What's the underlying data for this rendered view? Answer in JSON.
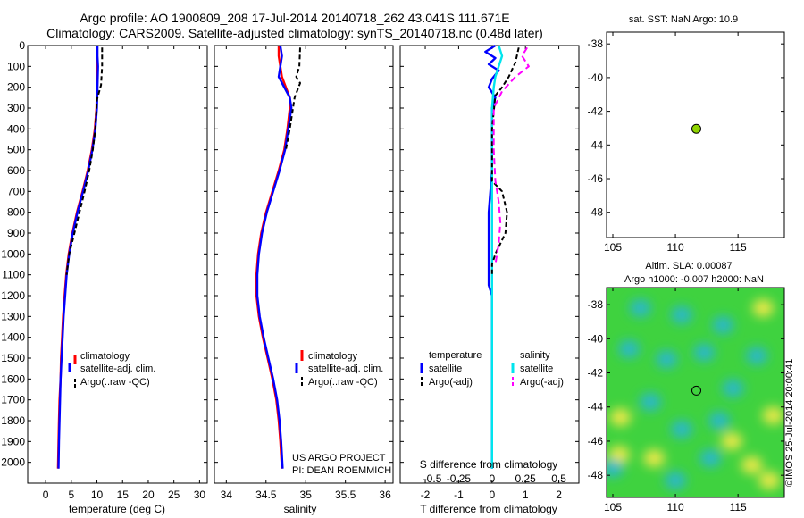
{
  "header": {
    "title_line1": "Argo profile: AO 1900809_208 17-Jul-2014 20140718_262 43.041S 111.671E",
    "title_line2": "Climatology: CARS2009. Satellite-adjusted climatology: synTS_20140718.nc (0.48d later)"
  },
  "credits": {
    "line1": "US ARGO PROJECT",
    "line2": "PI: DEAN ROEMMICH",
    "stamp": "©IMOS 25-Jul-2014 20:00:41"
  },
  "colors": {
    "climatology": "#ff0000",
    "satellite": "#0000ff",
    "argo": "#000000",
    "sal_satellite": "#00e5ee",
    "sal_argo": "#ff00ff",
    "marker_fill": "#8fd400"
  },
  "chart_data": [
    {
      "type": "line",
      "id": "temperature",
      "xlabel": "temperature (deg C)",
      "ylabel": "",
      "xlim": [
        -3.5,
        31.5
      ],
      "ylim": [
        2100,
        0
      ],
      "xticks": [
        0,
        5,
        10,
        15,
        20,
        25,
        30
      ],
      "yticks": [
        0,
        100,
        200,
        300,
        400,
        500,
        600,
        700,
        800,
        900,
        1000,
        1100,
        1200,
        1300,
        1400,
        1500,
        1600,
        1700,
        1800,
        1900,
        2000
      ],
      "legend": [
        "climatology",
        "satellite-adj. clim.",
        "Argo(..raw -QC)"
      ],
      "legend_position": "bottom-center",
      "series": [
        {
          "name": "climatology",
          "color": "#ff0000",
          "dash": "",
          "x": [
            10.0,
            10.0,
            10.1,
            10.0,
            9.9,
            9.6,
            9.0,
            8.2,
            7.2,
            6.1,
            5.2,
            4.5,
            4.0,
            3.7,
            3.4,
            3.2,
            3.0,
            2.9,
            2.7,
            2.6,
            2.5,
            2.4
          ],
          "y": [
            0,
            50,
            100,
            200,
            300,
            400,
            500,
            600,
            700,
            800,
            900,
            1000,
            1100,
            1200,
            1300,
            1400,
            1500,
            1600,
            1700,
            1800,
            1900,
            2030
          ]
        },
        {
          "name": "satellite-adj. clim.",
          "color": "#0000ff",
          "dash": "",
          "x": [
            10.1,
            10.1,
            10.2,
            10.1,
            10.0,
            9.7,
            9.1,
            8.3,
            7.3,
            6.2,
            5.3,
            4.6,
            4.1,
            3.8,
            3.5,
            3.3,
            3.1,
            2.9,
            2.8,
            2.7,
            2.6,
            2.5
          ],
          "y": [
            0,
            50,
            100,
            200,
            300,
            400,
            500,
            600,
            700,
            800,
            900,
            1000,
            1100,
            1200,
            1300,
            1400,
            1500,
            1600,
            1700,
            1800,
            1900,
            2030
          ]
        },
        {
          "name": "Argo(..raw -QC)",
          "color": "#000000",
          "dash": "5,3",
          "x": [
            11.0,
            11.0,
            11.0,
            10.8,
            10.0,
            9.7,
            9.2,
            8.5,
            7.6,
            6.6,
            5.6,
            4.6,
            4.1
          ],
          "y": [
            10,
            50,
            100,
            190,
            260,
            400,
            500,
            600,
            700,
            800,
            900,
            1000,
            1100
          ]
        }
      ]
    },
    {
      "type": "line",
      "id": "salinity",
      "xlabel": "salinity",
      "ylabel": "",
      "xlim": [
        33.85,
        36.1
      ],
      "ylim": [
        2100,
        0
      ],
      "xticks": [
        34,
        34.5,
        35,
        35.5,
        36
      ],
      "xticklabels": [
        "34",
        "34.5",
        "35",
        "35.5",
        "36"
      ],
      "legend": [
        "climatology",
        "satellite-adj. clim.",
        "Argo(..raw -QC)"
      ],
      "legend_position": "bottom-right",
      "series": [
        {
          "name": "climatology",
          "color": "#ff0000",
          "dash": "",
          "x": [
            34.66,
            34.66,
            34.7,
            34.8,
            34.8,
            34.77,
            34.73,
            34.66,
            34.58,
            34.5,
            34.44,
            34.4,
            34.38,
            34.38,
            34.41,
            34.46,
            34.52,
            34.58,
            34.63,
            34.66,
            34.68,
            34.7
          ],
          "y": [
            0,
            50,
            150,
            250,
            300,
            400,
            500,
            600,
            700,
            800,
            900,
            1000,
            1100,
            1200,
            1300,
            1400,
            1500,
            1600,
            1700,
            1800,
            1900,
            2030
          ]
        },
        {
          "name": "satellite-adj. clim.",
          "color": "#0000ff",
          "dash": "",
          "x": [
            34.68,
            34.7,
            34.66,
            34.8,
            34.82,
            34.78,
            34.74,
            34.67,
            34.59,
            34.51,
            34.45,
            34.41,
            34.39,
            34.39,
            34.42,
            34.47,
            34.53,
            34.59,
            34.64,
            34.67,
            34.69,
            34.71
          ],
          "y": [
            0,
            50,
            150,
            250,
            300,
            400,
            500,
            600,
            700,
            800,
            900,
            1000,
            1100,
            1200,
            1300,
            1400,
            1500,
            1600,
            1700,
            1800,
            1900,
            2030
          ]
        },
        {
          "name": "Argo(..raw -QC)",
          "color": "#000000",
          "dash": "5,3",
          "x": [
            34.93,
            34.92,
            34.88,
            34.93,
            34.86,
            34.8,
            34.75
          ],
          "y": [
            10,
            100,
            150,
            180,
            250,
            400,
            500
          ]
        }
      ]
    },
    {
      "type": "line",
      "id": "differences",
      "xlabel": "T difference from climatology",
      "xlabel2": "S difference from climatology",
      "xlim": [
        -2.75,
        2.6
      ],
      "ylim": [
        2100,
        0
      ],
      "xticks": [
        -2,
        -1,
        0,
        1,
        2
      ],
      "sxticklabels": [
        "-0.5",
        "-0.25",
        "0",
        "0.25",
        "0.5"
      ],
      "legend_titles": [
        "temperature",
        "salinity"
      ],
      "legend": [
        "satellite",
        "Argo(-adj)",
        "satellite",
        "Argo(-adj)"
      ],
      "legend_position": "bottom-center",
      "series": [
        {
          "name": "satellite",
          "group": "temperature",
          "color": "#0000ff",
          "dash": "",
          "x": [
            0.1,
            -0.2,
            0.1,
            -0.1,
            0.2,
            0.0,
            -0.1,
            0.1,
            0.0,
            0.0,
            0.0,
            -0.1,
            -0.1,
            -0.1,
            -0.1,
            0.0,
            0.0,
            0.0,
            0.0,
            0.0,
            0.0,
            0.0,
            0.0,
            0.0,
            0.0
          ],
          "y": [
            0,
            30,
            60,
            90,
            120,
            160,
            200,
            250,
            300,
            400,
            600,
            800,
            1000,
            1100,
            1150,
            1200,
            1300,
            1400,
            1500,
            1600,
            1700,
            1800,
            1900,
            2000,
            2030
          ]
        },
        {
          "name": "satellite",
          "group": "salinity",
          "color": "#00e5ee",
          "dash": "",
          "x": [
            0.2,
            0.3,
            0.2,
            0.1,
            0.05,
            0.0,
            0.0,
            0.0,
            0.0,
            0.0,
            0.0,
            0.0,
            0.0
          ],
          "y": [
            0,
            50,
            100,
            150,
            200,
            300,
            500,
            800,
            1100,
            1400,
            1700,
            1900,
            2030
          ]
        },
        {
          "name": "Argo(-adj)",
          "group": "temperature",
          "color": "#000000",
          "dash": "5,3",
          "x": [
            0.8,
            0.7,
            0.5,
            0.3,
            0.1,
            0.0,
            0.0,
            0.0,
            0.3,
            0.45,
            0.4,
            0.1,
            0.0,
            0.0
          ],
          "y": [
            10,
            80,
            150,
            200,
            240,
            400,
            600,
            650,
            700,
            800,
            900,
            1000,
            1050,
            1100
          ]
        },
        {
          "name": "Argo(-adj)",
          "group": "salinity",
          "color": "#ff00ff",
          "dash": "7,4",
          "x": [
            1.05,
            0.9,
            1.1,
            0.7,
            0.3,
            0.05,
            0.05,
            0.1,
            0.2,
            0.25,
            0.2,
            0.1
          ],
          "y": [
            10,
            50,
            100,
            150,
            220,
            300,
            500,
            650,
            750,
            850,
            950,
            1050
          ]
        }
      ]
    },
    {
      "type": "scatter",
      "id": "position-map",
      "title": "sat. SST: NaN Argo: 10.9",
      "xlim": [
        104.5,
        118.7
      ],
      "ylim": [
        -49.5,
        -37.3
      ],
      "xticks": [
        105,
        110,
        115
      ],
      "yticks": [
        -38,
        -40,
        -42,
        -44,
        -46,
        -48
      ],
      "points": [
        {
          "x": 111.671,
          "y": -43.041
        }
      ]
    },
    {
      "type": "heatmap",
      "id": "altimetry-map",
      "title_line1": "Altim. SLA: 0.00087",
      "title_line2": "Argo h1000: -0.007 h2000: NaN",
      "xlim": [
        104.5,
        118.7
      ],
      "ylim": [
        -49.3,
        -37.0
      ],
      "xticks": [
        105,
        110,
        115
      ],
      "yticks": [
        -38,
        -40,
        -42,
        -44,
        -46,
        -48
      ],
      "points": [
        {
          "x": 111.671,
          "y": -43.041
        }
      ],
      "anomaly_blobs": [
        {
          "x": 107.2,
          "y": -38.2,
          "level": "cyan"
        },
        {
          "x": 110.5,
          "y": -38.6,
          "level": "cyan"
        },
        {
          "x": 117.0,
          "y": -38.2,
          "level": "yellow"
        },
        {
          "x": 113.8,
          "y": -39.2,
          "level": "cyan"
        },
        {
          "x": 106.3,
          "y": -40.6,
          "level": "cyan"
        },
        {
          "x": 109.3,
          "y": -41.2,
          "level": "cyan"
        },
        {
          "x": 112.3,
          "y": -40.8,
          "level": "cyan"
        },
        {
          "x": 116.5,
          "y": -41.0,
          "level": "cyan"
        },
        {
          "x": 114.6,
          "y": -42.9,
          "level": "cyan"
        },
        {
          "x": 108.0,
          "y": -43.7,
          "level": "cyan"
        },
        {
          "x": 105.6,
          "y": -44.6,
          "level": "yellow"
        },
        {
          "x": 117.8,
          "y": -44.5,
          "level": "yellow"
        },
        {
          "x": 110.5,
          "y": -45.3,
          "level": "cyan"
        },
        {
          "x": 113.5,
          "y": -44.8,
          "level": "cyan"
        },
        {
          "x": 105.5,
          "y": -46.8,
          "level": "yellow"
        },
        {
          "x": 108.3,
          "y": -47.0,
          "level": "yellow"
        },
        {
          "x": 112.8,
          "y": -47.0,
          "level": "cyan"
        },
        {
          "x": 116.1,
          "y": -47.4,
          "level": "yellow"
        },
        {
          "x": 110.0,
          "y": -48.3,
          "level": "cyan"
        },
        {
          "x": 105.0,
          "y": -47.6,
          "level": "cyan"
        },
        {
          "x": 117.5,
          "y": -48.3,
          "level": "yellow"
        },
        {
          "x": 114.5,
          "y": -46.0,
          "level": "yellow"
        }
      ]
    }
  ]
}
